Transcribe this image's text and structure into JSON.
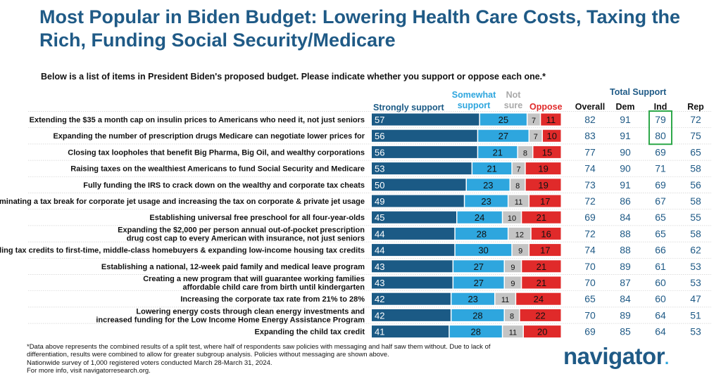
{
  "title": "Most Popular in Biden Budget: Lowering Health Care Costs, Taxing the Rich, Funding Social Security/Medicare",
  "subtitle": "Below is a list of items in President Biden's proposed budget. Please indicate whether you support or oppose each one.*",
  "headers": {
    "strongly_support": "Strongly support",
    "somewhat_support": "Somewhat support",
    "not_sure": "Not sure",
    "oppose": "Oppose",
    "total_support": "Total Support",
    "overall": "Overall",
    "dem": "Dem",
    "ind": "Ind",
    "rep": "Rep"
  },
  "colors": {
    "strongly_support": "#1b5a85",
    "somewhat_support": "#2ea6de",
    "not_sure": "#c4c4c4",
    "oppose": "#e02a2a",
    "title": "#1f5a86",
    "highlight_box": "#2ea84a"
  },
  "chart_data": {
    "type": "bar",
    "orientation": "horizontal",
    "stacked": true,
    "series_names": [
      "Strongly support",
      "Somewhat support",
      "Not sure",
      "Oppose"
    ],
    "rows": [
      {
        "label": "Extending the $35 a month cap on insulin prices to Americans who need it, not just seniors",
        "values": [
          57,
          25,
          7,
          11
        ],
        "overall": 82,
        "dem": 91,
        "ind": 79,
        "rep": 72,
        "highlight_ind": true
      },
      {
        "label": "Expanding the number of prescription drugs Medicare can negotiate lower prices for",
        "values": [
          56,
          27,
          7,
          10
        ],
        "overall": 83,
        "dem": 91,
        "ind": 80,
        "rep": 75,
        "highlight_ind": true
      },
      {
        "label": "Closing tax loopholes that benefit Big Pharma, Big Oil, and wealthy corporations",
        "values": [
          56,
          21,
          8,
          15
        ],
        "overall": 77,
        "dem": 90,
        "ind": 69,
        "rep": 65
      },
      {
        "label": "Raising taxes on the wealthiest Americans to fund Social Security and Medicare",
        "values": [
          53,
          21,
          7,
          19
        ],
        "overall": 74,
        "dem": 90,
        "ind": 71,
        "rep": 58
      },
      {
        "label": "Fully funding the IRS to crack down on the wealthy and corporate tax cheats",
        "values": [
          50,
          23,
          8,
          19
        ],
        "overall": 73,
        "dem": 91,
        "ind": 69,
        "rep": 56
      },
      {
        "label": "Eliminating a tax break for corporate jet usage and increasing the tax on corporate & private jet usage",
        "values": [
          49,
          23,
          11,
          17
        ],
        "overall": 72,
        "dem": 86,
        "ind": 67,
        "rep": 58
      },
      {
        "label": "Establishing universal free preschool for all four-year-olds",
        "values": [
          45,
          24,
          10,
          21
        ],
        "overall": 69,
        "dem": 84,
        "ind": 65,
        "rep": 55
      },
      {
        "label": "Expanding the $2,000 per person annual out-of-pocket prescription drug cost cap to every American with insurance, not just seniors",
        "lines": [
          "Expanding the $2,000 per person annual out-of-pocket prescription",
          "drug cost cap to every American with insurance, not just seniors"
        ],
        "values": [
          44,
          28,
          12,
          16
        ],
        "overall": 72,
        "dem": 88,
        "ind": 65,
        "rep": 58
      },
      {
        "label": "Providing tax credits to first-time, middle-class homebuyers & expanding low-income housing tax credits",
        "values": [
          44,
          30,
          9,
          17
        ],
        "overall": 74,
        "dem": 88,
        "ind": 66,
        "rep": 62
      },
      {
        "label": "Establishing a national, 12-week paid family and medical leave program",
        "values": [
          43,
          27,
          9,
          21
        ],
        "overall": 70,
        "dem": 89,
        "ind": 61,
        "rep": 53
      },
      {
        "label": "Creating a new program that will guarantee working families affordable child care from birth until kindergarten",
        "lines": [
          "Creating a new program that will guarantee working families",
          "affordable child care from birth until kindergarten"
        ],
        "values": [
          43,
          27,
          9,
          21
        ],
        "overall": 70,
        "dem": 87,
        "ind": 60,
        "rep": 53
      },
      {
        "label": "Increasing the corporate tax rate from 21% to 28%",
        "values": [
          42,
          23,
          11,
          24
        ],
        "overall": 65,
        "dem": 84,
        "ind": 60,
        "rep": 47
      },
      {
        "label": "Lowering energy costs through clean energy investments and increased funding for the Low Income Home Energy Assistance Program",
        "lines": [
          "Lowering energy costs through clean energy investments and",
          "increased funding for the Low Income Home Energy Assistance Program"
        ],
        "values": [
          42,
          28,
          8,
          22
        ],
        "overall": 70,
        "dem": 89,
        "ind": 64,
        "rep": 51
      },
      {
        "label": "Expanding the child tax credit",
        "values": [
          41,
          28,
          11,
          20
        ],
        "overall": 69,
        "dem": 85,
        "ind": 64,
        "rep": 53
      }
    ]
  },
  "footer": [
    "*Data above represents the combined results of a split test, where half of respondents saw policies with messaging and half saw them without. Due to lack of",
    "differentiation, results were combined to allow for greater subgroup analysis. Policies without messaging are shown above.",
    "Nationwide survey of 1,000 registered voters conducted March 28-March 31, 2024.",
    "For more info, visit navigatorresearch.org."
  ],
  "logo": {
    "text": "navigator",
    "dot": "."
  }
}
